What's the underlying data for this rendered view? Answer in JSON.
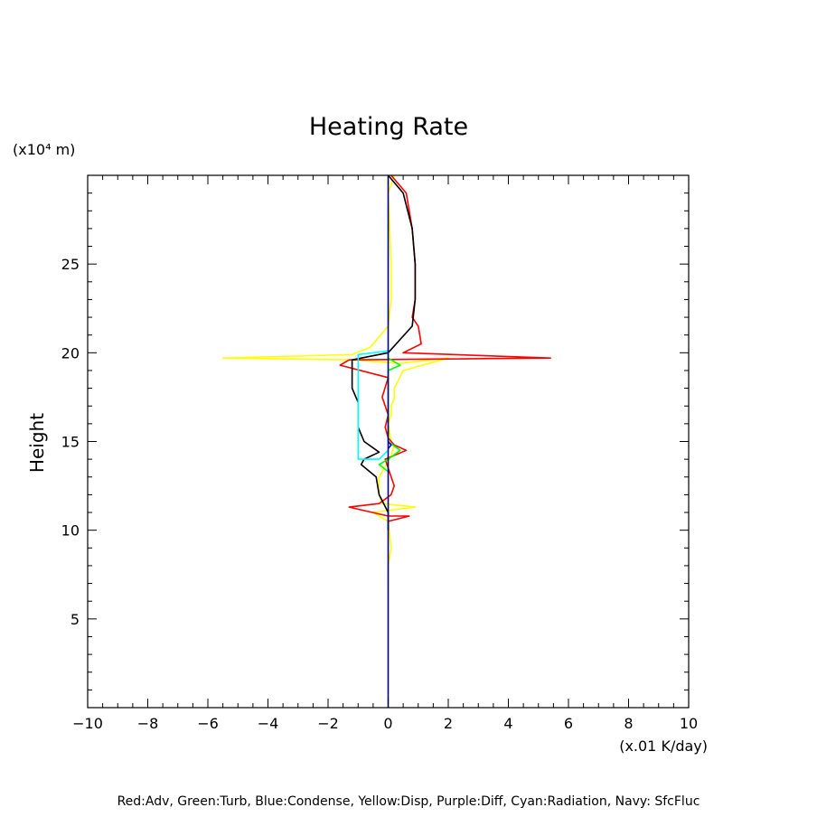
{
  "chart_data": {
    "type": "line",
    "title": "Heating Rate",
    "xlabel": "(x.01 K/day)",
    "ylabel": "Height",
    "yunit": "(x10⁴ m)",
    "xlim": [
      -10,
      10
    ],
    "ylim": [
      0,
      30
    ],
    "x_ticks": [
      "−10",
      "−8",
      "−6",
      "−4",
      "−2",
      "0",
      "2",
      "4",
      "6",
      "8",
      "10"
    ],
    "y_ticks": [
      "5",
      "10",
      "15",
      "20",
      "25"
    ],
    "legend_text": "Red:Adv, Green:Turb, Blue:Condense, Yellow:Disp, Purple:Diff, Cyan:Radiation, Navy: SfcFluc",
    "grid": false,
    "series": [
      {
        "name": "Disp",
        "color": "#ffff00",
        "points": [
          [
            0.2,
            30
          ],
          [
            0.0,
            29
          ],
          [
            0.05,
            27
          ],
          [
            0.1,
            25
          ],
          [
            0.1,
            23
          ],
          [
            0.0,
            21.5
          ],
          [
            -0.6,
            20.3
          ],
          [
            -1.2,
            19.9
          ],
          [
            -5.5,
            19.7
          ],
          [
            -1.2,
            19.6
          ],
          [
            0.4,
            19.4
          ],
          [
            2.0,
            19.7
          ],
          [
            0.5,
            19.0
          ],
          [
            0.2,
            18.0
          ],
          [
            0.2,
            17.4
          ],
          [
            0.1,
            17.0
          ],
          [
            0.1,
            16.5
          ],
          [
            0.0,
            16.0
          ],
          [
            0.1,
            15.0
          ],
          [
            0.2,
            14.8
          ],
          [
            0.1,
            14.2
          ],
          [
            -0.3,
            13.0
          ],
          [
            -0.3,
            12.0
          ],
          [
            -0.2,
            11.5
          ],
          [
            0.9,
            11.3
          ],
          [
            -0.5,
            11.0
          ],
          [
            0.0,
            10.5
          ],
          [
            0.1,
            9.0
          ],
          [
            0.0,
            8.0
          ],
          [
            0.0,
            6.5
          ]
        ]
      },
      {
        "name": "Adv",
        "color": "#ff0000",
        "points": [
          [
            0.1,
            30
          ],
          [
            0.6,
            29
          ],
          [
            0.8,
            27
          ],
          [
            0.9,
            25
          ],
          [
            0.9,
            23
          ],
          [
            0.8,
            22
          ],
          [
            1.0,
            21.5
          ],
          [
            1.1,
            20.5
          ],
          [
            0.5,
            20.0
          ],
          [
            5.4,
            19.7
          ],
          [
            -1.3,
            19.6
          ],
          [
            -1.6,
            19.3
          ],
          [
            0.0,
            18.6
          ],
          [
            -0.2,
            17.5
          ],
          [
            0.0,
            16.5
          ],
          [
            -0.1,
            15.8
          ],
          [
            0.0,
            15.2
          ],
          [
            0.2,
            14.8
          ],
          [
            0.6,
            14.5
          ],
          [
            -0.1,
            14.0
          ],
          [
            0.0,
            13.5
          ],
          [
            0.2,
            12.5
          ],
          [
            0.1,
            12.0
          ],
          [
            -0.3,
            11.5
          ],
          [
            -1.3,
            11.3
          ],
          [
            0.0,
            10.8
          ],
          [
            0.7,
            10.8
          ],
          [
            0.0,
            10.5
          ]
        ]
      },
      {
        "name": "Black",
        "color": "#000000",
        "points": [
          [
            0.0,
            30
          ],
          [
            0.5,
            29
          ],
          [
            0.8,
            27
          ],
          [
            0.9,
            25
          ],
          [
            0.9,
            23
          ],
          [
            0.8,
            21.5
          ],
          [
            0.0,
            20.0
          ],
          [
            -1.2,
            19.6
          ],
          [
            -1.2,
            19.0
          ],
          [
            -1.2,
            18.0
          ],
          [
            -1.0,
            17.2
          ],
          [
            -1.0,
            16.5
          ],
          [
            -1.0,
            15.8
          ],
          [
            -0.8,
            15.0
          ],
          [
            -0.3,
            14.4
          ],
          [
            -0.8,
            14.0
          ],
          [
            -0.9,
            13.7
          ],
          [
            -0.4,
            13.0
          ],
          [
            -0.3,
            12.0
          ],
          [
            0.0,
            11.0
          ],
          [
            0.0,
            10.0
          ]
        ]
      },
      {
        "name": "Turb",
        "color": "#00ff00",
        "points": [
          [
            0.0,
            20.2
          ],
          [
            0.0,
            19.7
          ],
          [
            0.4,
            19.3
          ],
          [
            0.0,
            19.0
          ],
          [
            0.0,
            15.0
          ],
          [
            0.4,
            14.5
          ],
          [
            0.0,
            14.0
          ],
          [
            -0.3,
            13.7
          ],
          [
            0.0,
            13.3
          ]
        ]
      },
      {
        "name": "Radiation",
        "color": "#00ffff",
        "points": [
          [
            0.0,
            20.1
          ],
          [
            -1.0,
            19.9
          ],
          [
            -1.0,
            14.0
          ],
          [
            -0.3,
            14.0
          ],
          [
            0.0,
            14.5
          ]
        ]
      },
      {
        "name": "Condense",
        "color": "#0000ff",
        "points": [
          [
            0.0,
            15.0
          ],
          [
            0.1,
            14.8
          ],
          [
            0.0,
            14.6
          ]
        ]
      },
      {
        "name": "SfcFluc",
        "color": "#000080",
        "points": [
          [
            0.0,
            30
          ],
          [
            0.0,
            0
          ]
        ]
      }
    ]
  }
}
